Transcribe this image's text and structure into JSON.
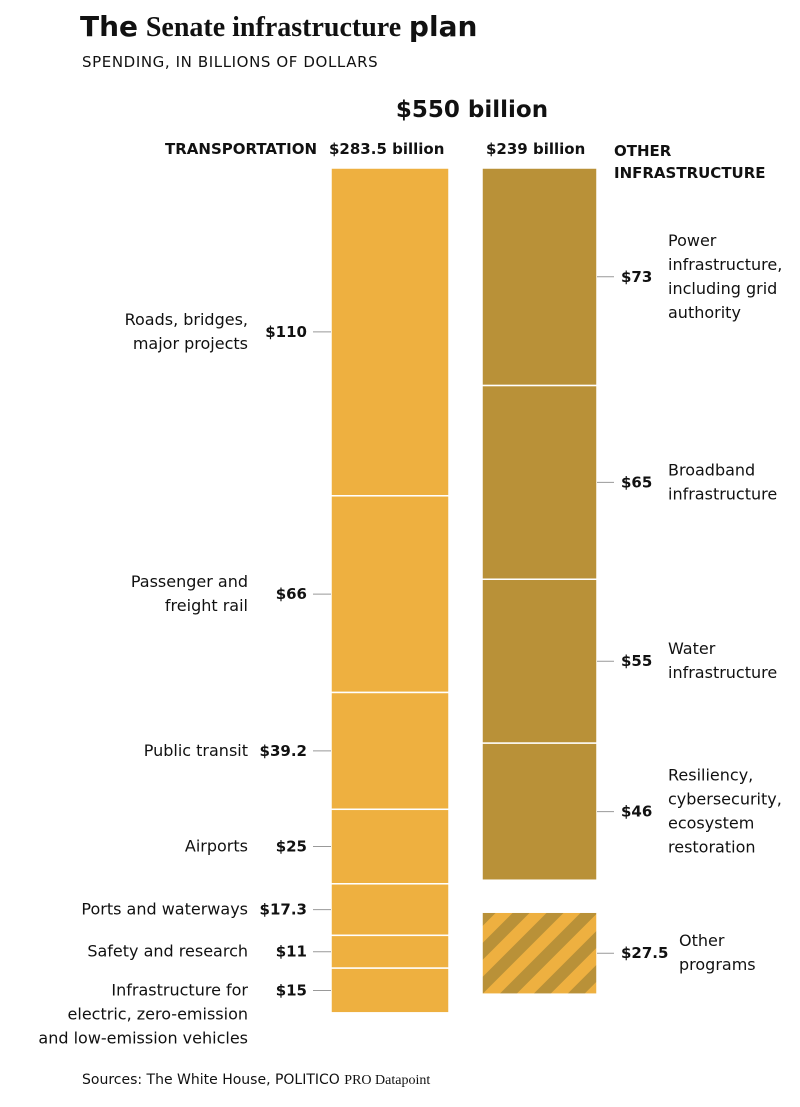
{
  "title_bold": "The",
  "title_serif": "Senate infrastructure",
  "title_end": "plan",
  "subtitle": "SPENDING, IN BILLIONS OF DOLLARS",
  "total_label": "$550 billion",
  "source_prefix": "Sources: The White House, POLITICO ",
  "source_suffix": "PRO Datapoint",
  "colors": {
    "transportation": "#EEB040",
    "other": "#B99138",
    "divider": "#ffffff",
    "tick": "#999999"
  },
  "chart_data": {
    "type": "bar",
    "stacked": true,
    "unit": "billions of dollars",
    "series": [
      {
        "name": "TRANSPORTATION",
        "total_label": "$283.5 billion",
        "total": 283.5,
        "segments": [
          {
            "label": [
              "Roads, bridges,",
              "major projects"
            ],
            "value": 110,
            "value_label": "$110"
          },
          {
            "label": [
              "Passenger and",
              "freight rail"
            ],
            "value": 66,
            "value_label": "$66"
          },
          {
            "label": [
              "Public transit"
            ],
            "value": 39.2,
            "value_label": "$39.2"
          },
          {
            "label": [
              "Airports"
            ],
            "value": 25,
            "value_label": "$25"
          },
          {
            "label": [
              "Ports and waterways"
            ],
            "value": 17.3,
            "value_label": "$17.3"
          },
          {
            "label": [
              "Safety and research"
            ],
            "value": 11,
            "value_label": "$11"
          },
          {
            "label": [
              "Infrastructure for",
              "electric, zero-emission",
              "and low-emission vehicles"
            ],
            "value": 15,
            "value_label": "$15"
          }
        ]
      },
      {
        "name": [
          "OTHER",
          "INFRASTRUCTURE"
        ],
        "total_label": "$239 billion",
        "total": 239,
        "segments": [
          {
            "label": [
              "Power",
              "infrastructure,",
              "including grid",
              "authority"
            ],
            "value": 73,
            "value_label": "$73"
          },
          {
            "label": [
              "Broadband",
              "infrastructure"
            ],
            "value": 65,
            "value_label": "$65"
          },
          {
            "label": [
              "Water",
              "infrastructure"
            ],
            "value": 55,
            "value_label": "$55"
          },
          {
            "label": [
              "Resiliency,",
              "cybersecurity,",
              "ecosystem",
              "restoration"
            ],
            "value": 46,
            "value_label": "$46"
          },
          {
            "label": [
              "Other",
              "programs"
            ],
            "value": 27.5,
            "value_label": "$27.5",
            "separate": true,
            "pattern": "hatched"
          }
        ]
      }
    ]
  }
}
